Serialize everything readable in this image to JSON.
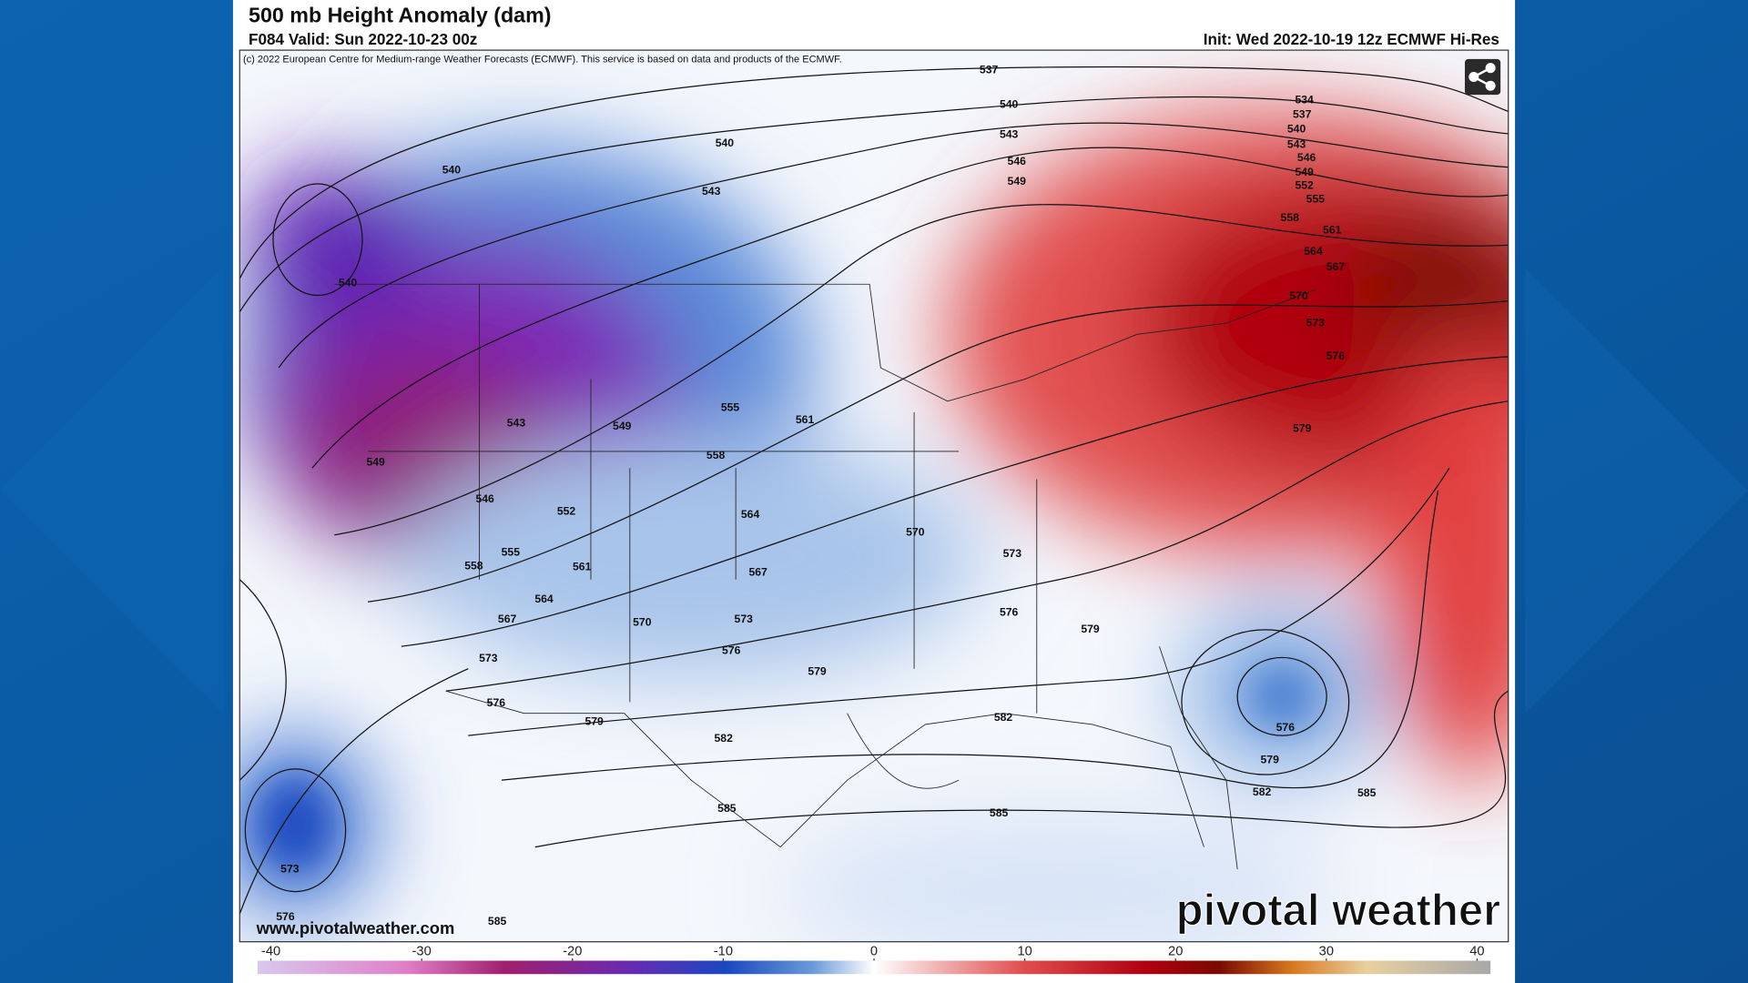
{
  "header": {
    "title": "500 mb Height Anomaly (dam)",
    "valid": "F084 Valid: Sun 2022-10-23 00z",
    "init": "Init: Wed 2022-10-19 12z ECMWF Hi-Res",
    "copyright": "(c) 2022 European Centre for Medium-range Weather Forecasts (ECMWF). This service is based on data and products of the ECMWF."
  },
  "contour_labels": [
    "537",
    "540",
    "543",
    "546",
    "549",
    "540",
    "543",
    "540",
    "540",
    "534",
    "537",
    "540",
    "543",
    "546",
    "549",
    "552",
    "555",
    "558",
    "561",
    "564",
    "567",
    "570",
    "573",
    "576",
    "579",
    "543",
    "549",
    "555",
    "561",
    "558",
    "549",
    "546",
    "552",
    "564",
    "570",
    "573",
    "555",
    "558",
    "561",
    "567",
    "564",
    "567",
    "570",
    "573",
    "576",
    "579",
    "576",
    "573",
    "579",
    "576",
    "579",
    "582",
    "582",
    "576",
    "579",
    "582",
    "585",
    "585",
    "585",
    "573",
    "576",
    "585"
  ],
  "colorbar": {
    "ticks": [
      -40,
      -30,
      -20,
      -10,
      0,
      10,
      20,
      30,
      40
    ]
  },
  "footer": {
    "website": "www.pivotalweather.com",
    "logo": "pivotal weather"
  }
}
